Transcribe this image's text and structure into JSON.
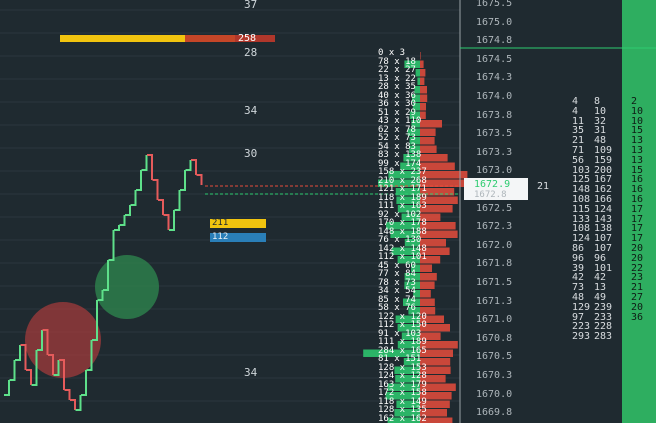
{
  "footprint": {
    "top_labels": [
      "37",
      "258",
      "28"
    ],
    "mid_labels": [
      "34",
      "30",
      "34"
    ],
    "volume_badges": [
      "211",
      "112"
    ],
    "rows_sample": [
      "0 x 3",
      "78 x 18",
      "22 x 27",
      "13 x 22",
      "28 x 35",
      "40 x 36",
      "36 x 30",
      "51 x 29",
      "43 x 110",
      "62 x 78",
      "52 x 73",
      "54 x 83",
      "83 x 138",
      "99 x 174",
      "158 x 237",
      "210 x 268",
      "121 x 171",
      "118 x 189",
      "111 x 163",
      "92 x 102",
      "170 x 178",
      "148 x 188",
      "76 x 130",
      "142 x 148",
      "112 x 101",
      "45 x 60",
      "77 x 84",
      "78 x 73",
      "34 x 54",
      "85 x 74",
      "58 x 76",
      "122 x 120",
      "112 x 150",
      "91 x 103",
      "111 x 189",
      "284 x 165",
      "81 x 151",
      "128 x 153",
      "124 x 128",
      "163 x 179",
      "172 x 158",
      "118 x 149",
      "128 x 135",
      "162 x 162"
    ]
  },
  "price_ladder": {
    "prices": [
      "1675.5",
      "1675.0",
      "1674.8",
      "1674.5",
      "1674.3",
      "1674.0",
      "1673.8",
      "1673.5",
      "1673.3",
      "1673.0",
      "1672.8",
      "1672.5",
      "1672.3",
      "1672.0",
      "1671.8",
      "1671.5",
      "1671.3",
      "1671.0",
      "1670.8",
      "1670.5",
      "1670.3",
      "1670.0",
      "1669.8"
    ],
    "current_price": "1672.9",
    "current_price_prev": "1672.8",
    "side_value": "21"
  },
  "dom_columns": {
    "bid_col": [
      "4",
      "4",
      "11",
      "35",
      "21",
      "71",
      "56",
      "103",
      "125",
      "148",
      "108",
      "115",
      "133",
      "108",
      "124",
      "86",
      "96",
      "39",
      "42",
      "73",
      "48",
      "129",
      "97",
      "223",
      "293"
    ],
    "ask_col": [
      "8",
      "10",
      "32",
      "31",
      "48",
      "109",
      "159",
      "200",
      "167",
      "162",
      "166",
      "124",
      "143",
      "138",
      "107",
      "107",
      "96",
      "101",
      "42",
      "13",
      "49",
      "239",
      "233",
      "228",
      "283"
    ],
    "vol_col": [
      "2",
      "10",
      "10",
      "15",
      "13",
      "13",
      "13",
      "15",
      "16",
      "16",
      "16",
      "17",
      "17",
      "17",
      "17",
      "20",
      "20",
      "22",
      "23",
      "21",
      "27",
      "20",
      "36"
    ]
  },
  "colors": {
    "background": "#1f2a30",
    "buy": "#2ecc71",
    "sell": "#e74c3c",
    "accent_yellow": "#f1c40f",
    "accent_blue": "#2a7fb8"
  }
}
